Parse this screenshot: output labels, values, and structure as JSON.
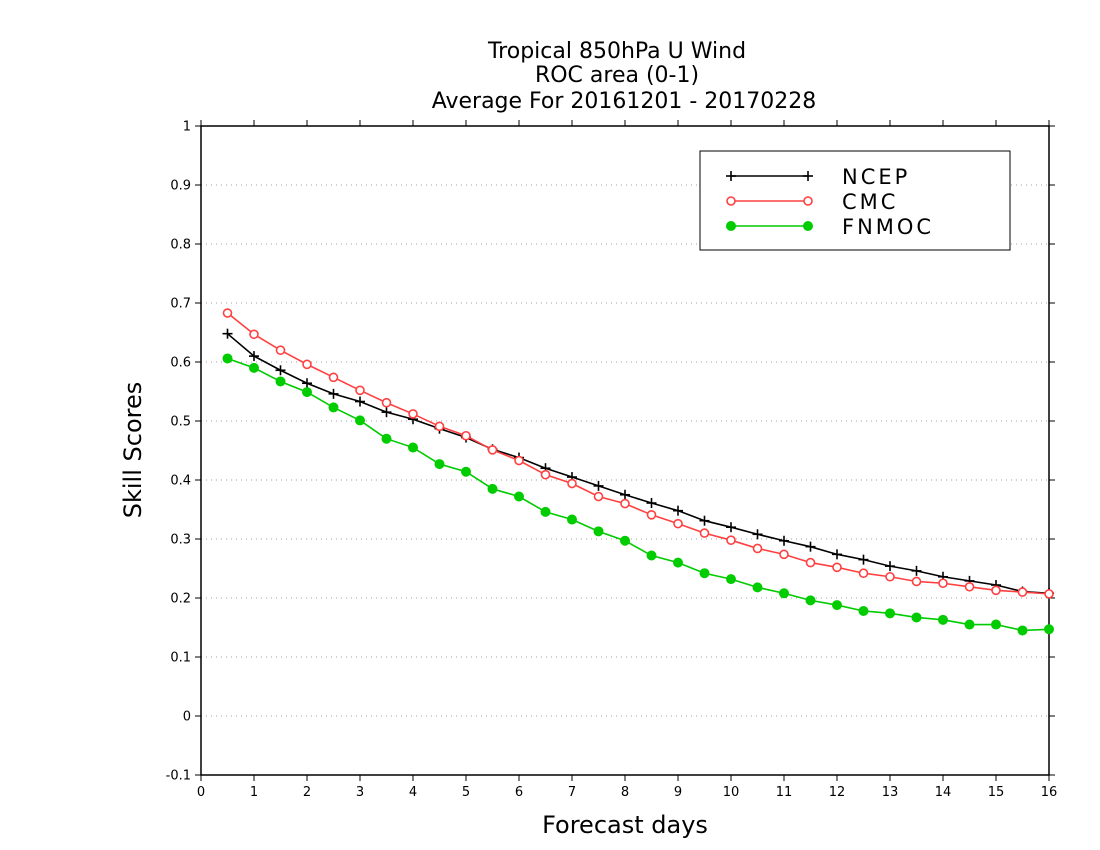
{
  "chart_data": {
    "type": "line",
    "title": [
      "Tropical 850hPa U Wind",
      "ROC area (0-1)",
      "Average For 20161201 - 20170228"
    ],
    "xlabel": "Forecast days",
    "ylabel": "Skill Scores",
    "xlim": [
      0,
      16
    ],
    "ylim": [
      -0.1,
      1
    ],
    "xticks": [
      "0",
      "1",
      "2",
      "3",
      "4",
      "5",
      "6",
      "7",
      "8",
      "9",
      "10",
      "11",
      "12",
      "13",
      "14",
      "15",
      "16"
    ],
    "yticks": [
      "-0.1",
      "0",
      "0.1",
      "0.2",
      "0.3",
      "0.4",
      "0.5",
      "0.6",
      "0.7",
      "0.8",
      "0.9",
      "1"
    ],
    "grid": "horizontal dotted",
    "legend_position": "top-right",
    "x": [
      0.5,
      1,
      1.5,
      2,
      2.5,
      3,
      3.5,
      4,
      4.5,
      5,
      5.5,
      6,
      6.5,
      7,
      7.5,
      8,
      8.5,
      9,
      9.5,
      10,
      10.5,
      11,
      11.5,
      12,
      12.5,
      13,
      13.5,
      14,
      14.5,
      15,
      15.5,
      16
    ],
    "series": [
      {
        "name": "NCEP",
        "color": "#000000",
        "marker": "plus",
        "values": [
          0.648,
          0.61,
          0.586,
          0.564,
          0.546,
          0.533,
          0.515,
          0.503,
          0.487,
          0.472,
          0.452,
          0.438,
          0.42,
          0.405,
          0.39,
          0.375,
          0.361,
          0.348,
          0.331,
          0.32,
          0.308,
          0.297,
          0.287,
          0.274,
          0.265,
          0.254,
          0.246,
          0.236,
          0.229,
          0.222,
          0.211,
          0.208
        ]
      },
      {
        "name": "CMC",
        "color": "#ff4040",
        "marker": "circle-open",
        "values": [
          0.683,
          0.647,
          0.62,
          0.596,
          0.574,
          0.552,
          0.531,
          0.512,
          0.491,
          0.475,
          0.451,
          0.433,
          0.409,
          0.394,
          0.372,
          0.36,
          0.341,
          0.326,
          0.31,
          0.298,
          0.284,
          0.274,
          0.26,
          0.252,
          0.242,
          0.236,
          0.228,
          0.225,
          0.219,
          0.213,
          0.21,
          0.207
        ]
      },
      {
        "name": "FNMOC",
        "color": "#00cc00",
        "marker": "circle-filled",
        "values": [
          0.606,
          0.59,
          0.567,
          0.549,
          0.523,
          0.501,
          0.47,
          0.455,
          0.427,
          0.414,
          0.385,
          0.372,
          0.346,
          0.333,
          0.313,
          0.297,
          0.272,
          0.26,
          0.242,
          0.232,
          0.218,
          0.208,
          0.196,
          0.188,
          0.178,
          0.174,
          0.167,
          0.163,
          0.155,
          0.155,
          0.145,
          0.147
        ]
      }
    ]
  }
}
